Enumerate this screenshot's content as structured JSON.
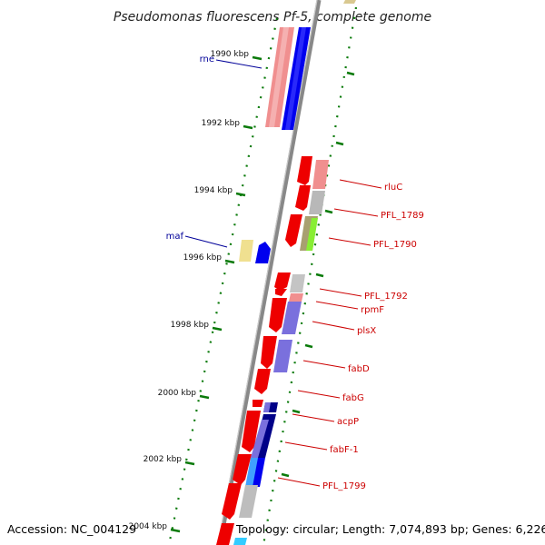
{
  "title": "Pseudomonas fluorescens Pf-5, complete genome",
  "footer": {
    "accession": "Accession: NC_004129",
    "topology": "Topology: circular; Length: 7,074,893 bp; Genes: 6,226"
  },
  "axis": {
    "tick_labels": [
      "1990 kbp",
      "1992 kbp",
      "1994 kbp",
      "1996 kbp",
      "1998 kbp",
      "2000 kbp",
      "2002 kbp",
      "2004 kbp"
    ]
  },
  "genes_left": [
    {
      "label": "rne",
      "color": "#000099"
    },
    {
      "label": "maf",
      "color": "#000099"
    }
  ],
  "genes_right": [
    {
      "label": "rluC",
      "color": "#cc0000"
    },
    {
      "label": "PFL_1789",
      "color": "#cc0000"
    },
    {
      "label": "PFL_1790",
      "color": "#cc0000"
    },
    {
      "label": "PFL_1792",
      "color": "#cc0000"
    },
    {
      "label": "rpmF",
      "color": "#cc0000"
    },
    {
      "label": "plsX",
      "color": "#cc0000"
    },
    {
      "label": "fabD",
      "color": "#cc0000"
    },
    {
      "label": "fabG",
      "color": "#cc0000"
    },
    {
      "label": "acpP",
      "color": "#cc0000"
    },
    {
      "label": "fabF-1",
      "color": "#cc0000"
    },
    {
      "label": "PFL_1799",
      "color": "#cc0000"
    }
  ]
}
